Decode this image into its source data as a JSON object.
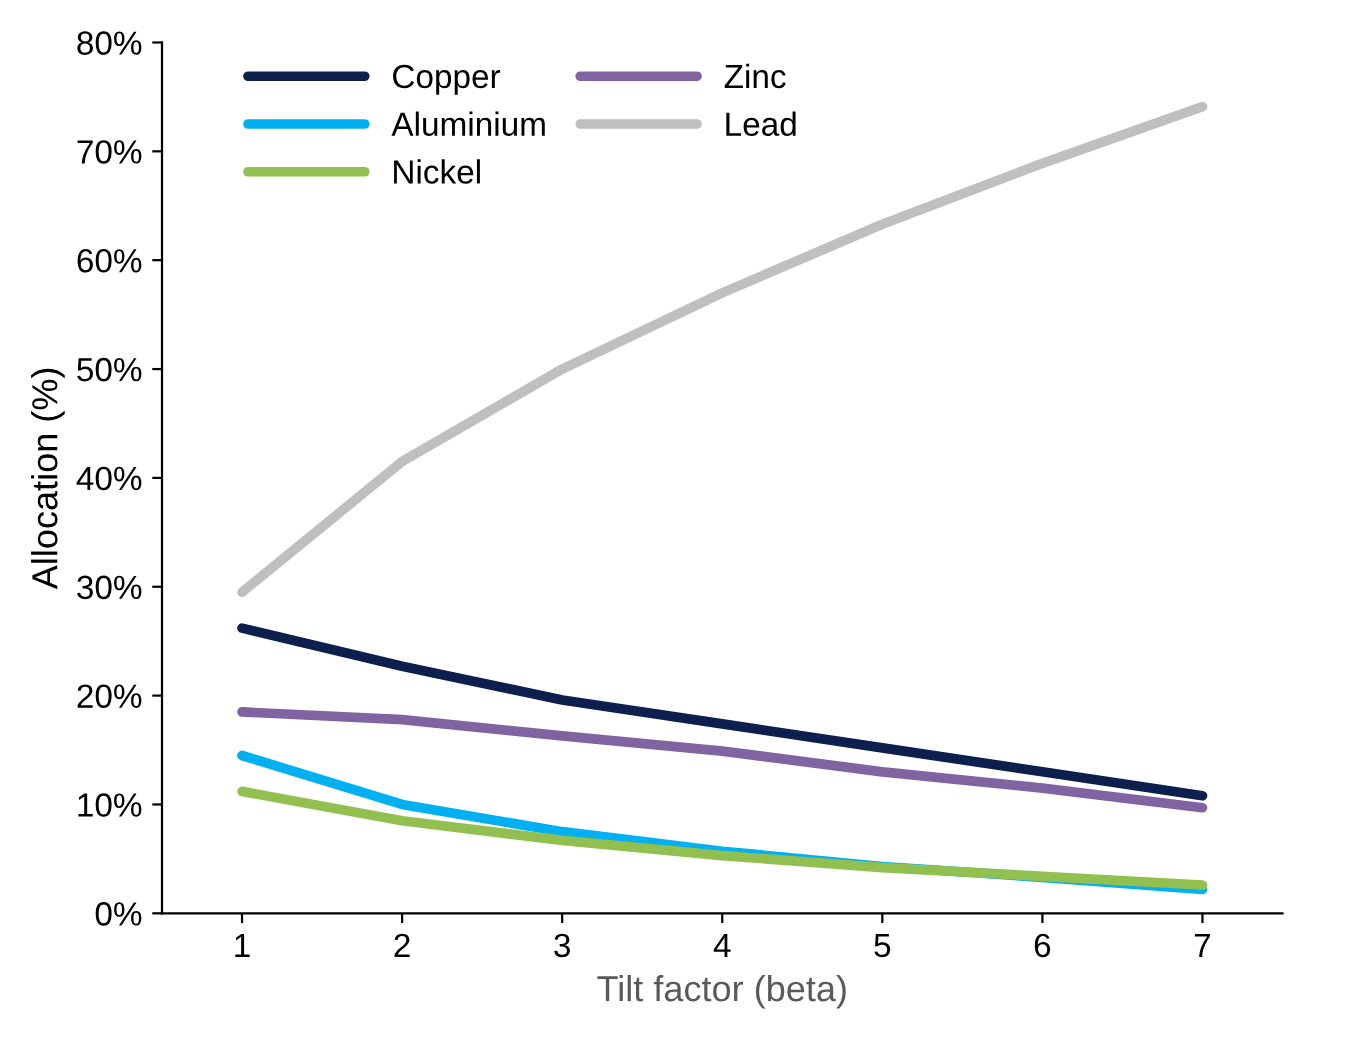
{
  "chart_data": {
    "type": "line",
    "xlabel": "Tilt factor (beta)",
    "ylabel": "Allocation (%)",
    "x": [
      1,
      2,
      3,
      4,
      5,
      6,
      7
    ],
    "series": [
      {
        "name": "Copper",
        "color": "#0c1f4d",
        "values": [
          26.2,
          22.7,
          19.6,
          17.4,
          15.2,
          13.0,
          10.8
        ]
      },
      {
        "name": "Aluminium",
        "color": "#00b0f0",
        "values": [
          14.5,
          10.0,
          7.5,
          5.7,
          4.3,
          3.3,
          2.2
        ]
      },
      {
        "name": "Nickel",
        "color": "#92c050",
        "values": [
          11.2,
          8.5,
          6.7,
          5.3,
          4.2,
          3.4,
          2.6
        ]
      },
      {
        "name": "Zinc",
        "color": "#8064a2",
        "values": [
          18.5,
          17.8,
          16.3,
          14.9,
          13.0,
          11.5,
          9.7
        ]
      },
      {
        "name": "Lead",
        "color": "#bfbfbf",
        "values": [
          29.5,
          41.5,
          50.0,
          57.0,
          63.3,
          68.9,
          74.1
        ]
      }
    ],
    "xlim": [
      0.5,
      7.5
    ],
    "xticks": [
      1,
      2,
      3,
      4,
      5,
      6,
      7
    ],
    "ylim": [
      0,
      80
    ],
    "yticks": [
      {
        "value": 0,
        "label": "0%"
      },
      {
        "value": 10,
        "label": "10%"
      },
      {
        "value": 20,
        "label": "20%"
      },
      {
        "value": 30,
        "label": "30%"
      },
      {
        "value": 40,
        "label": "40%"
      },
      {
        "value": 50,
        "label": "50%"
      },
      {
        "value": 60,
        "label": "60%"
      },
      {
        "value": 70,
        "label": "70%"
      },
      {
        "value": 80,
        "label": "80%"
      }
    ],
    "grid": false,
    "legend": "top left",
    "marker": "none",
    "line_style": "solid"
  }
}
